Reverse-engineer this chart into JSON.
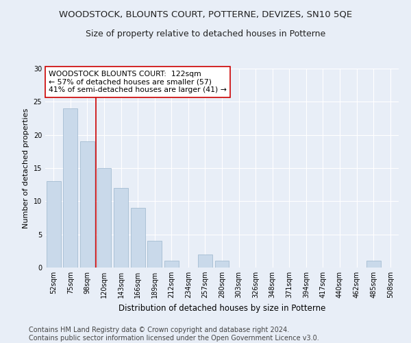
{
  "title": "WOODSTOCK, BLOUNTS COURT, POTTERNE, DEVIZES, SN10 5QE",
  "subtitle": "Size of property relative to detached houses in Potterne",
  "xlabel": "Distribution of detached houses by size in Potterne",
  "ylabel": "Number of detached properties",
  "categories": [
    "52sqm",
    "75sqm",
    "98sqm",
    "120sqm",
    "143sqm",
    "166sqm",
    "189sqm",
    "212sqm",
    "234sqm",
    "257sqm",
    "280sqm",
    "303sqm",
    "326sqm",
    "348sqm",
    "371sqm",
    "394sqm",
    "417sqm",
    "440sqm",
    "462sqm",
    "485sqm",
    "508sqm"
  ],
  "values": [
    13,
    24,
    19,
    15,
    12,
    9,
    4,
    1,
    0,
    2,
    1,
    0,
    0,
    0,
    0,
    0,
    0,
    0,
    0,
    1,
    0
  ],
  "bar_color": "#c9d9ea",
  "bar_edge_color": "#9ab5cc",
  "annotation_text": "WOODSTOCK BLOUNTS COURT:  122sqm\n← 57% of detached houses are smaller (57)\n41% of semi-detached houses are larger (41) →",
  "annotation_box_color": "#ffffff",
  "annotation_box_edge_color": "#cc0000",
  "line_color": "#cc0000",
  "line_x_index": 3,
  "ylim": [
    0,
    30
  ],
  "yticks": [
    0,
    5,
    10,
    15,
    20,
    25,
    30
  ],
  "footer_text": "Contains HM Land Registry data © Crown copyright and database right 2024.\nContains public sector information licensed under the Open Government Licence v3.0.",
  "bg_color": "#e8eef7",
  "plot_bg_color": "#e8eef7",
  "title_fontsize": 9.5,
  "subtitle_fontsize": 9,
  "annotation_fontsize": 7.8,
  "footer_fontsize": 7,
  "ylabel_fontsize": 8,
  "xlabel_fontsize": 8.5,
  "tick_fontsize": 7
}
